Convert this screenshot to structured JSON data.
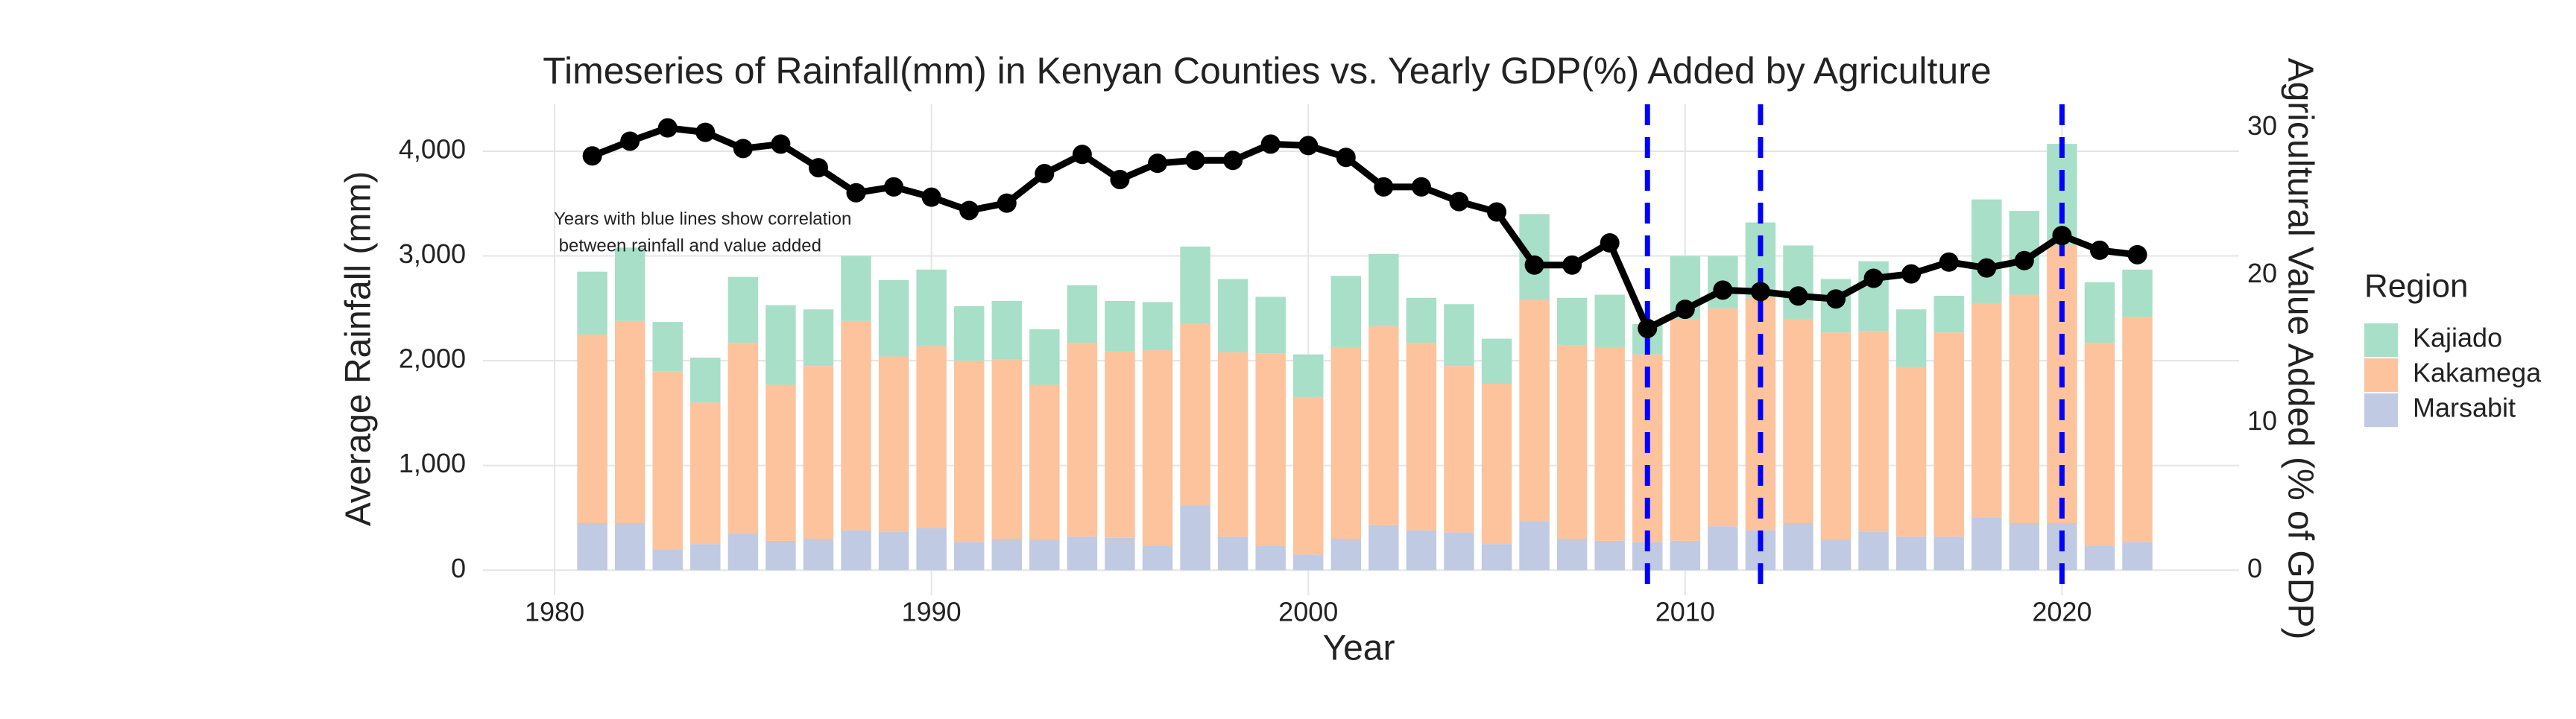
{
  "chart_data": {
    "type": "bar",
    "stacked": true,
    "title": "Timeseries of Rainfall(mm) in Kenyan Counties vs. Yearly GDP(%) Added by Agriculture",
    "x_label": "Year",
    "y_label": "Average Rainfall (mm)",
    "y2_label": "Agricultural Value Added (% of GDP)",
    "legend_title": "Region",
    "legend_position": "right",
    "annotation": [
      "Years with blue lines show correlation",
      " between rainfall and value added"
    ],
    "x": [
      1981,
      1982,
      1983,
      1984,
      1985,
      1986,
      1987,
      1988,
      1989,
      1990,
      1991,
      1992,
      1993,
      1994,
      1995,
      1996,
      1997,
      1998,
      1999,
      2000,
      2001,
      2002,
      2003,
      2004,
      2005,
      2006,
      2007,
      2008,
      2009,
      2010,
      2011,
      2012,
      2013,
      2014,
      2015,
      2016,
      2017,
      2018,
      2019,
      2020,
      2021,
      2022
    ],
    "series": [
      {
        "name": "Marsabit",
        "color": "#c0cae2",
        "values": [
          450,
          450,
          200,
          250,
          350,
          280,
          300,
          380,
          370,
          400,
          270,
          300,
          290,
          320,
          310,
          230,
          620,
          320,
          230,
          150,
          300,
          430,
          380,
          360,
          250,
          470,
          300,
          280,
          270,
          280,
          420,
          380,
          450,
          290,
          370,
          320,
          320,
          500,
          450,
          450,
          230,
          270
        ]
      },
      {
        "name": "Kakamega",
        "color": "#fcc39c",
        "values": [
          1800,
          1930,
          1700,
          1350,
          1820,
          1490,
          1650,
          2000,
          1670,
          1740,
          1730,
          1710,
          1480,
          1850,
          1780,
          1870,
          1730,
          1760,
          1840,
          1500,
          1830,
          1900,
          1790,
          1590,
          1530,
          2110,
          1850,
          1850,
          1790,
          2120,
          2080,
          2220,
          1950,
          1980,
          1910,
          1620,
          1950,
          2050,
          2180,
          2650,
          1940,
          2150
        ]
      },
      {
        "name": "Kajiado",
        "color": "#a8dfc8",
        "values": [
          600,
          700,
          470,
          430,
          630,
          760,
          540,
          620,
          730,
          730,
          520,
          560,
          530,
          550,
          480,
          460,
          740,
          700,
          540,
          410,
          680,
          690,
          430,
          590,
          430,
          820,
          450,
          500,
          290,
          600,
          500,
          720,
          700,
          510,
          670,
          550,
          350,
          990,
          800,
          970,
          580,
          450
        ]
      },
      {
        "type": "line",
        "axis": "y2",
        "color": "#000000",
        "values": [
          28.1,
          29.1,
          30,
          29.7,
          28.6,
          28.9,
          27.3,
          25.6,
          26,
          25.3,
          24.4,
          24.9,
          26.9,
          28.2,
          26.5,
          27.6,
          27.8,
          27.8,
          28.9,
          28.8,
          28,
          26,
          26,
          25,
          24.3,
          20.7,
          20.7,
          22.2,
          16.4,
          17.7,
          19,
          18.9,
          18.6,
          18.4,
          19.8,
          20.1,
          20.9,
          20.5,
          21,
          22.7,
          21.7,
          21.4
        ]
      }
    ],
    "vlines": {
      "x": [
        2009,
        2012,
        2020
      ],
      "color": "#0000ff"
    },
    "xlim": [
      1978.1,
      2024.7
    ],
    "xticks": [
      1980,
      1990,
      2000,
      2010,
      2020
    ],
    "ylim": [
      -240,
      4448
    ],
    "yticks": [
      0,
      {
        "value": 1000,
        "label": "1,000"
      },
      {
        "value": 2000,
        "label": "2,000"
      },
      {
        "value": 3000,
        "label": "3,000"
      },
      {
        "value": 4000,
        "label": "4,000"
      }
    ],
    "y2lim": [
      -1.7,
      31.6
    ],
    "y2ticks": [
      0,
      10,
      20,
      30
    ],
    "grid": true
  }
}
